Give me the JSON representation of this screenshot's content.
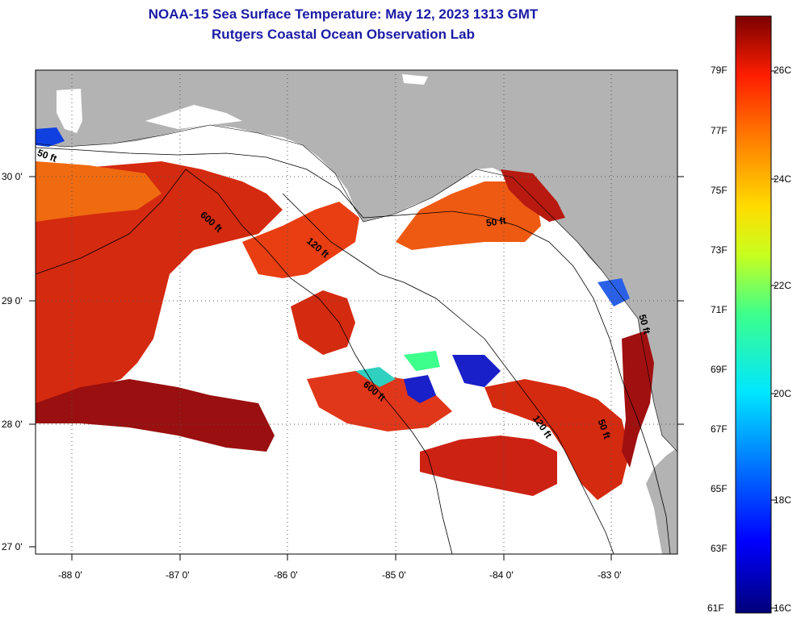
{
  "title": {
    "line1": "NOAA-15 Sea Surface Temperature:  May 12, 2023 1313 GMT",
    "line2": "Rutgers Coastal Ocean Observation Lab"
  },
  "colors": {
    "title": "#1a1aa6",
    "land": "#b3b3b3",
    "cloud": "#ffffff",
    "warm": "#d42a10",
    "hot": "#9a0f0f",
    "mid": "#f06a10"
  },
  "axes": {
    "lat_labels": [
      "30 0'",
      "29 0'",
      "28 0'",
      "27 0'"
    ],
    "lon_labels": [
      "-88 0'",
      "-87 0'",
      "-86 0'",
      "-85 0'",
      "-84 0'",
      "-83 0'"
    ]
  },
  "contours": [
    "50 ft",
    "600 ft",
    "120 ft",
    "50 ft",
    "600 ft",
    "120 ft",
    "50 ft",
    "50 ft"
  ],
  "colorbar": {
    "fahrenheit": [
      "79F",
      "77F",
      "75F",
      "73F",
      "71F",
      "69F",
      "67F",
      "65F",
      "63F",
      "61F"
    ],
    "celsius": [
      "26C",
      "24C",
      "22C",
      "20C",
      "18C",
      "16C"
    ]
  }
}
